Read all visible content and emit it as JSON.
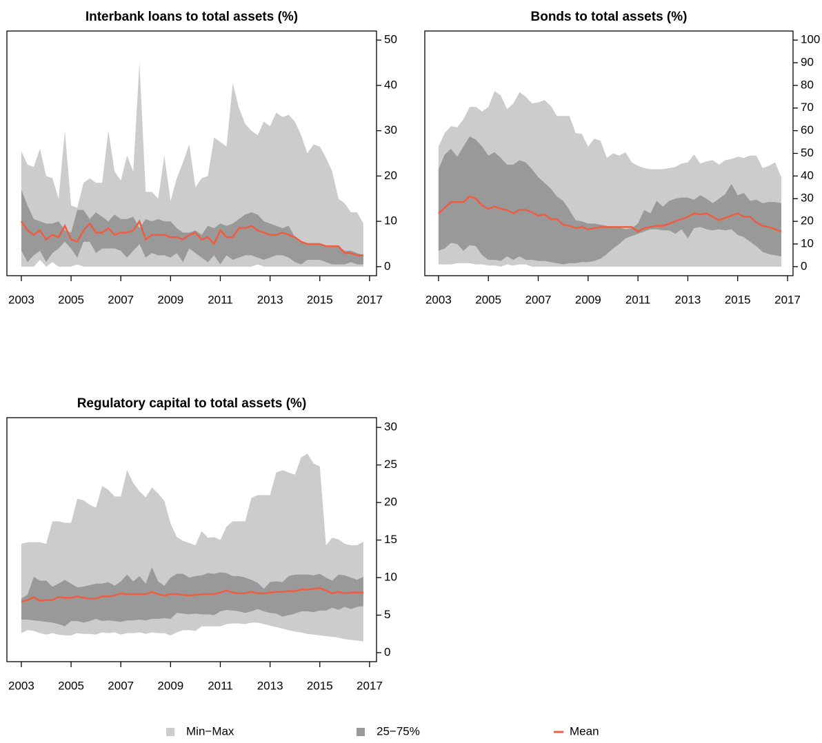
{
  "chart_data": [
    {
      "type": "band",
      "title": "Interbank loans to total assets (%)",
      "x": [
        2003,
        2003.25,
        2003.5,
        2003.75,
        2004,
        2004.25,
        2004.5,
        2004.75,
        2005,
        2005.25,
        2005.5,
        2005.75,
        2006,
        2006.25,
        2006.5,
        2006.75,
        2007,
        2007.25,
        2007.5,
        2007.75,
        2008,
        2008.25,
        2008.5,
        2008.75,
        2009,
        2009.25,
        2009.5,
        2009.75,
        2010,
        2010.25,
        2010.5,
        2010.75,
        2011,
        2011.25,
        2011.5,
        2011.75,
        2012,
        2012.25,
        2012.5,
        2012.75,
        2013,
        2013.25,
        2013.5,
        2013.75,
        2014,
        2014.25,
        2014.5,
        2014.75,
        2015,
        2015.25,
        2015.5,
        2015.75,
        2016,
        2016.25,
        2016.5,
        2016.75
      ],
      "xlim": [
        2002.42,
        2017.28
      ],
      "xticks": [
        2003,
        2005,
        2007,
        2009,
        2011,
        2013,
        2015,
        2017
      ],
      "ylim": [
        -2,
        52
      ],
      "yticks": [
        0,
        10,
        20,
        30,
        40,
        50
      ],
      "bands": [
        {
          "name": "Min−Max",
          "color": "#cccccc",
          "lower": [
            0,
            0,
            0,
            1.5,
            0,
            1,
            0,
            0,
            0,
            0.5,
            0,
            0,
            0,
            0,
            0,
            0,
            0,
            0,
            0,
            0,
            0,
            0,
            0,
            0,
            0,
            0,
            0,
            0,
            0,
            0,
            0,
            0,
            0,
            0,
            0,
            0,
            0,
            0,
            0.5,
            0,
            0,
            0,
            0,
            0,
            0,
            0,
            0,
            0,
            0,
            0,
            0,
            0,
            0,
            0,
            0,
            0
          ],
          "upper": [
            25.5,
            22.5,
            22,
            26,
            20,
            19.5,
            15,
            30,
            13.5,
            13,
            18.5,
            19.5,
            18.5,
            18.5,
            30,
            21,
            19,
            24.5,
            21,
            45,
            16.5,
            16.5,
            15,
            24.5,
            14.5,
            19.5,
            23,
            27,
            17.5,
            19.5,
            20,
            28.5,
            27.5,
            26.5,
            40.5,
            35,
            31.5,
            30,
            29,
            32,
            31,
            34,
            33,
            33.5,
            32,
            29,
            25,
            27,
            26.5,
            24,
            21,
            15,
            14,
            12,
            12,
            9.5
          ]
        },
        {
          "name": "25−75%",
          "color": "#999999",
          "lower": [
            3.5,
            1,
            2.5,
            3.5,
            1,
            3,
            4,
            5.5,
            4,
            2,
            5.5,
            5.5,
            3,
            4,
            4,
            4,
            3.5,
            2,
            3.5,
            5,
            2,
            3,
            2.5,
            2.5,
            2,
            3,
            1,
            4,
            3,
            2,
            1,
            2.5,
            0.5,
            2.5,
            1.5,
            2,
            2.5,
            2.5,
            2,
            1.5,
            2,
            2.5,
            2.5,
            2,
            1,
            0.5,
            1.5,
            1.5,
            1.5,
            1,
            0.5,
            0.5,
            0.5,
            1,
            0.5,
            0.5
          ],
          "upper": [
            17,
            13.5,
            10.5,
            10,
            9.5,
            9.5,
            10,
            8,
            7.5,
            12.5,
            12.5,
            10.5,
            12,
            11,
            10,
            11.5,
            10.5,
            10.5,
            11,
            8.5,
            10.5,
            10,
            10.5,
            10,
            10,
            8.5,
            7.5,
            7.5,
            8,
            7,
            9,
            8.5,
            9.5,
            9,
            9.5,
            10.5,
            11.5,
            12,
            11.5,
            10,
            9.5,
            9,
            8.5,
            9,
            6.5,
            5.5,
            5,
            5,
            5,
            4.5,
            4.5,
            4.5,
            3.5,
            3.5,
            3,
            2.5
          ]
        }
      ],
      "series": [
        {
          "name": "Mean",
          "color": "#ee5c42",
          "values": [
            10,
            8,
            7,
            8,
            6,
            7,
            6.5,
            9,
            6,
            5.5,
            8,
            9.5,
            7.5,
            7.5,
            8.5,
            7,
            7.5,
            7.5,
            8,
            10,
            6,
            7,
            7,
            7,
            6.5,
            6.5,
            6,
            7,
            7.5,
            6,
            6.5,
            5,
            8,
            6.5,
            6.5,
            8.5,
            8.5,
            9,
            8,
            7.5,
            7,
            7,
            7.5,
            7,
            6.5,
            5.5,
            5,
            5,
            5,
            4.5,
            4.5,
            4.5,
            3,
            3,
            2.5,
            2.5
          ]
        }
      ]
    },
    {
      "type": "band",
      "title": "Bonds to total assets (%)",
      "x": [
        2003,
        2003.25,
        2003.5,
        2003.75,
        2004,
        2004.25,
        2004.5,
        2004.75,
        2005,
        2005.25,
        2005.5,
        2005.75,
        2006,
        2006.25,
        2006.5,
        2006.75,
        2007,
        2007.25,
        2007.5,
        2007.75,
        2008,
        2008.25,
        2008.5,
        2008.75,
        2009,
        2009.25,
        2009.5,
        2009.75,
        2010,
        2010.25,
        2010.5,
        2010.75,
        2011,
        2011.25,
        2011.5,
        2011.75,
        2012,
        2012.25,
        2012.5,
        2012.75,
        2013,
        2013.25,
        2013.5,
        2013.75,
        2014,
        2014.25,
        2014.5,
        2014.75,
        2015,
        2015.25,
        2015.5,
        2015.75,
        2016,
        2016.25,
        2016.5,
        2016.75
      ],
      "xlim": [
        2002.45,
        2017.22
      ],
      "xticks": [
        2003,
        2005,
        2007,
        2009,
        2011,
        2013,
        2015,
        2017
      ],
      "ylim": [
        -4,
        104
      ],
      "yticks": [
        0,
        10,
        20,
        30,
        40,
        50,
        60,
        70,
        80,
        90,
        100
      ],
      "bands": [
        {
          "name": "Min−Max",
          "color": "#cccccc",
          "lower": [
            1,
            1,
            1,
            1.5,
            1.5,
            1.5,
            1,
            1,
            0.5,
            0.5,
            0,
            1,
            0.5,
            1,
            1,
            0,
            0,
            0,
            0,
            0,
            0,
            0,
            0,
            0,
            0,
            0,
            0,
            0,
            0,
            0,
            0,
            0,
            0,
            0,
            0,
            0,
            0,
            0,
            0,
            0,
            0,
            0,
            0,
            0,
            0,
            0,
            0,
            0,
            0,
            0,
            0,
            0,
            0,
            0,
            0,
            0
          ],
          "upper": [
            53,
            59,
            62,
            61.5,
            65,
            70.5,
            70.5,
            68.5,
            70.5,
            77.5,
            75.5,
            69.5,
            72,
            77,
            75,
            72,
            72.5,
            73.5,
            71,
            66.5,
            66.5,
            66.5,
            59,
            58.5,
            53,
            56.5,
            55.5,
            48,
            50,
            49,
            50.5,
            46,
            44.5,
            43.5,
            43,
            43,
            43,
            43.5,
            44,
            45.5,
            46,
            49.5,
            45.5,
            46.5,
            47,
            45,
            47,
            47.5,
            48.5,
            48,
            49,
            49,
            43.5,
            44.5,
            46,
            39.5
          ]
        },
        {
          "name": "25−75%",
          "color": "#999999",
          "lower": [
            7,
            8,
            10.5,
            10,
            7,
            9.5,
            9,
            5,
            3,
            3,
            2.5,
            4.5,
            3,
            4.5,
            3,
            3,
            2.5,
            2.5,
            2,
            1.5,
            1,
            1.5,
            1.5,
            2,
            2,
            2.5,
            3.5,
            5.5,
            8,
            10,
            12.5,
            13.5,
            14.5,
            15.5,
            16.5,
            16.5,
            16,
            16,
            14.5,
            16.5,
            12.5,
            17,
            17.5,
            16.5,
            16,
            16.5,
            16,
            16.5,
            14,
            13,
            11,
            9,
            6.5,
            5.5,
            5,
            4.5
          ],
          "upper": [
            43,
            49.5,
            52,
            48.5,
            53,
            57.5,
            56,
            53,
            49,
            50.5,
            48,
            45,
            45,
            47,
            46,
            43,
            39.5,
            37,
            34.5,
            31,
            29,
            25,
            20.5,
            20,
            19,
            19,
            18.5,
            18,
            17,
            17.5,
            16.5,
            17,
            19,
            25,
            23.5,
            29,
            26.5,
            29,
            30,
            30.5,
            30.5,
            29.5,
            31.5,
            30,
            28,
            30,
            32,
            36.5,
            31.5,
            32.5,
            29,
            29.5,
            28,
            28.5,
            28.5,
            28
          ]
        }
      ],
      "series": [
        {
          "name": "Mean",
          "color": "#ee5c42",
          "values": [
            23.5,
            26,
            28.5,
            28.5,
            28.5,
            31,
            30,
            27,
            25.5,
            26.5,
            25.5,
            25,
            23.5,
            25,
            25,
            24,
            22.5,
            23,
            21,
            21,
            18.5,
            18,
            17,
            17.5,
            16.5,
            17,
            17.5,
            17.5,
            17.5,
            17.5,
            17.5,
            17.5,
            15.5,
            17,
            17.5,
            18,
            18,
            19,
            20,
            21,
            22,
            23.5,
            23,
            23.5,
            22,
            20.5,
            21.5,
            22.5,
            23.5,
            22,
            22,
            19.5,
            18,
            17.5,
            16.5,
            15.5
          ]
        }
      ]
    },
    {
      "type": "band",
      "title": "Regulatory capital to total assets (%)",
      "x": [
        2003,
        2003.25,
        2003.5,
        2003.75,
        2004,
        2004.25,
        2004.5,
        2004.75,
        2005,
        2005.25,
        2005.5,
        2005.75,
        2006,
        2006.25,
        2006.5,
        2006.75,
        2007,
        2007.25,
        2007.5,
        2007.75,
        2008,
        2008.25,
        2008.5,
        2008.75,
        2009,
        2009.25,
        2009.5,
        2009.75,
        2010,
        2010.25,
        2010.5,
        2010.75,
        2011,
        2011.25,
        2011.5,
        2011.75,
        2012,
        2012.25,
        2012.5,
        2012.75,
        2013,
        2013.25,
        2013.5,
        2013.75,
        2014,
        2014.25,
        2014.5,
        2014.75,
        2015,
        2015.25,
        2015.5,
        2015.75,
        2016,
        2016.25,
        2016.5,
        2016.75
      ],
      "xlim": [
        2002.42,
        2017.28
      ],
      "xticks": [
        2003,
        2005,
        2007,
        2009,
        2011,
        2013,
        2015,
        2017
      ],
      "ylim": [
        -1.2,
        31.3
      ],
      "yticks": [
        0,
        5,
        10,
        15,
        20,
        25,
        30
      ],
      "bands": [
        {
          "name": "Min−Max",
          "color": "#cccccc",
          "lower": [
            2.6,
            3,
            2.9,
            2.6,
            2.4,
            2.6,
            2.4,
            2.3,
            2.3,
            2.6,
            2.5,
            2.5,
            2.4,
            2.7,
            2.6,
            2.7,
            2.4,
            2.6,
            2.6,
            2.7,
            2.5,
            2.7,
            2.6,
            2.6,
            2.3,
            2.7,
            3,
            3,
            2.9,
            3.5,
            3.5,
            3.5,
            3.5,
            3.8,
            3.9,
            3.9,
            3.8,
            4,
            4,
            3.8,
            3.6,
            3.4,
            3.2,
            3,
            2.8,
            2.7,
            2.5,
            2.4,
            2.3,
            2.2,
            2.1,
            2,
            1.8,
            1.7,
            1.6,
            1.5
          ],
          "upper": [
            14.5,
            14.7,
            14.7,
            14.7,
            14.5,
            17.5,
            17.5,
            17.3,
            17.3,
            20.5,
            20.3,
            19.7,
            19.3,
            22.2,
            21.7,
            20.8,
            20.8,
            24.3,
            22.6,
            21.5,
            20.7,
            22,
            21.2,
            20.2,
            17.2,
            15.4,
            14.9,
            14.6,
            14.3,
            16.2,
            15.3,
            15.4,
            15,
            16.8,
            17.5,
            17.5,
            17.5,
            20.6,
            21,
            21,
            21,
            24,
            24.3,
            24,
            23.7,
            26,
            26.5,
            25.2,
            24.8,
            14.3,
            15.3,
            15.1,
            14.5,
            14.3,
            14.3,
            14.8
          ]
        },
        {
          "name": "25−75%",
          "color": "#999999",
          "lower": [
            4.4,
            4.4,
            4.3,
            4.2,
            4.1,
            4,
            3.8,
            3.5,
            4.2,
            4.2,
            4,
            4.2,
            4.5,
            4.2,
            4.3,
            4.2,
            4.1,
            4.3,
            4.3,
            4.4,
            4.3,
            4.5,
            4.5,
            4.6,
            4.5,
            5.3,
            5.2,
            5.1,
            5.2,
            5.1,
            5.1,
            5,
            5.5,
            5.7,
            5.6,
            5.5,
            5.3,
            5.5,
            5.8,
            5.5,
            5.3,
            5.2,
            4.8,
            5,
            5.2,
            5.5,
            5.5,
            5.4,
            5.6,
            5.6,
            6,
            5.7,
            6.1,
            5.8,
            6.1,
            6.2
          ],
          "upper": [
            7.2,
            7.7,
            10.1,
            9.6,
            9.6,
            8.8,
            9.2,
            9.7,
            9.2,
            8.7,
            8.8,
            9,
            9.2,
            9.2,
            9.4,
            8.9,
            9.5,
            10.4,
            9.5,
            10.2,
            9.2,
            11.4,
            9.5,
            8.9,
            10,
            10.5,
            10.5,
            10,
            10.2,
            10.3,
            10.6,
            10.5,
            10.7,
            10.6,
            10.2,
            10.2,
            10,
            9.7,
            9.3,
            8.5,
            9.4,
            9.5,
            9.4,
            10.2,
            10.4,
            10.4,
            10.4,
            10.3,
            10.5,
            10,
            9.6,
            10.4,
            10.3,
            10,
            9.7,
            10.1
          ]
        }
      ],
      "series": [
        {
          "name": "Mean",
          "color": "#ee5c42",
          "values": [
            6.8,
            7,
            7.4,
            6.9,
            7,
            7,
            7.4,
            7.3,
            7.3,
            7.5,
            7.3,
            7.2,
            7.2,
            7.5,
            7.5,
            7.6,
            7.9,
            7.8,
            7.8,
            7.8,
            7.8,
            8.1,
            7.8,
            7.6,
            7.8,
            7.8,
            7.7,
            7.6,
            7.7,
            7.8,
            7.8,
            7.8,
            8,
            8.3,
            8,
            7.9,
            7.9,
            8.1,
            7.9,
            7.9,
            8,
            8.1,
            8.1,
            8.2,
            8.2,
            8.4,
            8.4,
            8.5,
            8.6,
            8.3,
            7.9,
            8.1,
            7.9,
            8,
            8,
            8
          ]
        }
      ]
    }
  ]
}
